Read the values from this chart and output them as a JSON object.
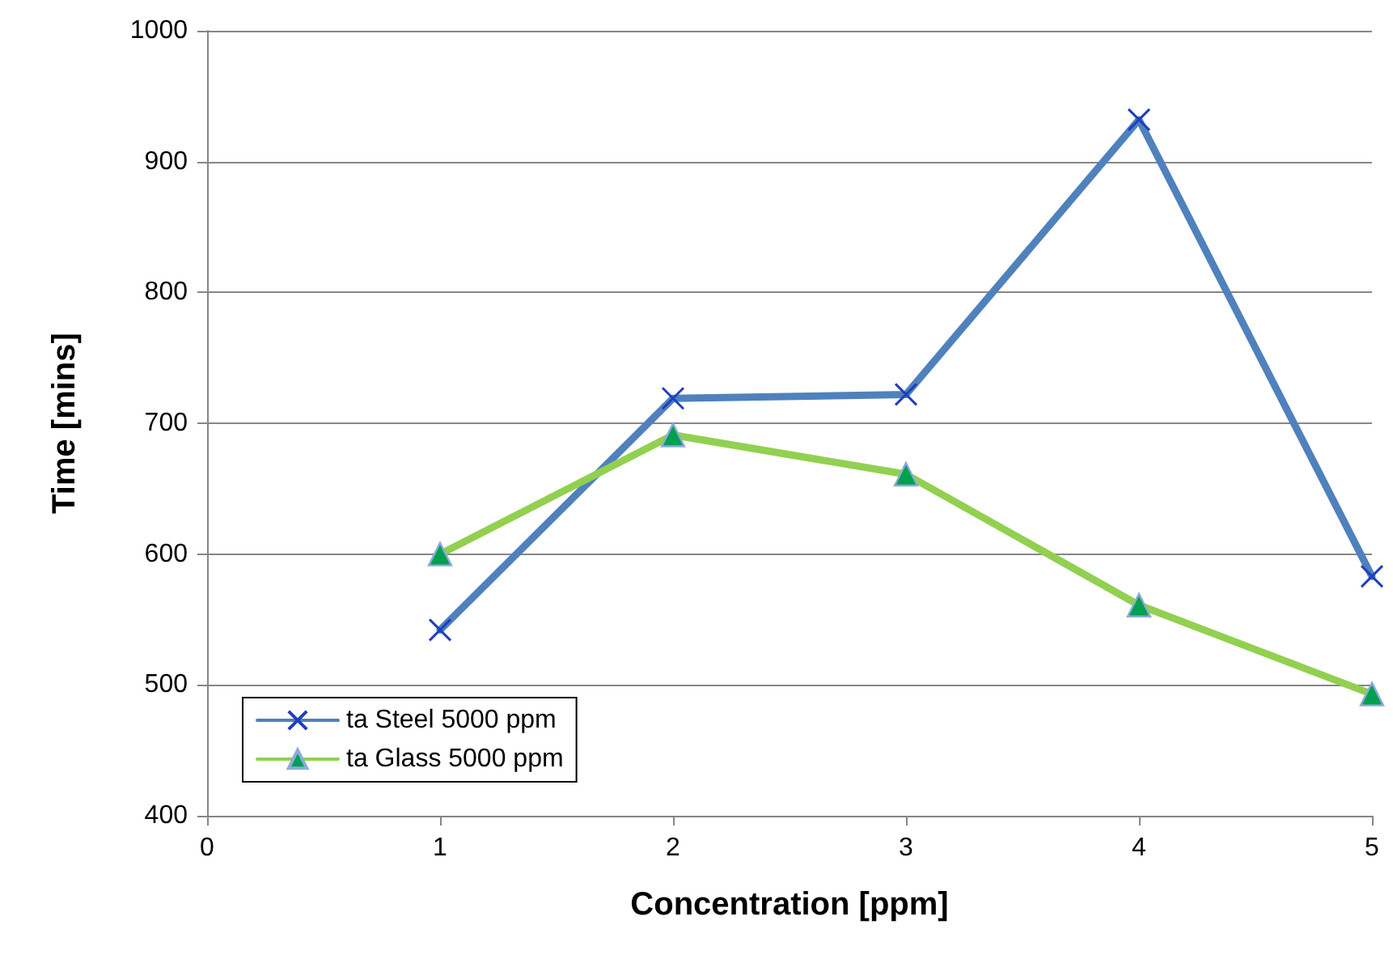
{
  "chart_data": {
    "type": "line",
    "xlabel": "Concentration [ppm]",
    "ylabel": "Time [mins]",
    "x": [
      1,
      2,
      3,
      4,
      5
    ],
    "series": [
      {
        "name": "ta Steel 5000 ppm",
        "color": "#4f81bd",
        "marker": "cross",
        "values": [
          542,
          719,
          722,
          932,
          583
        ]
      },
      {
        "name": "ta Glass 5000 ppm",
        "color": "#92d050",
        "marker": "triangle",
        "values": [
          600,
          691,
          661,
          561,
          493
        ]
      }
    ],
    "xlim": [
      0,
      5
    ],
    "xticks": [
      0,
      1,
      2,
      3,
      4,
      5
    ],
    "ylim": [
      400,
      1000
    ],
    "yticks": [
      400,
      500,
      600,
      700,
      800,
      900,
      1000
    ],
    "grid": "y",
    "legend": "bottom left"
  }
}
